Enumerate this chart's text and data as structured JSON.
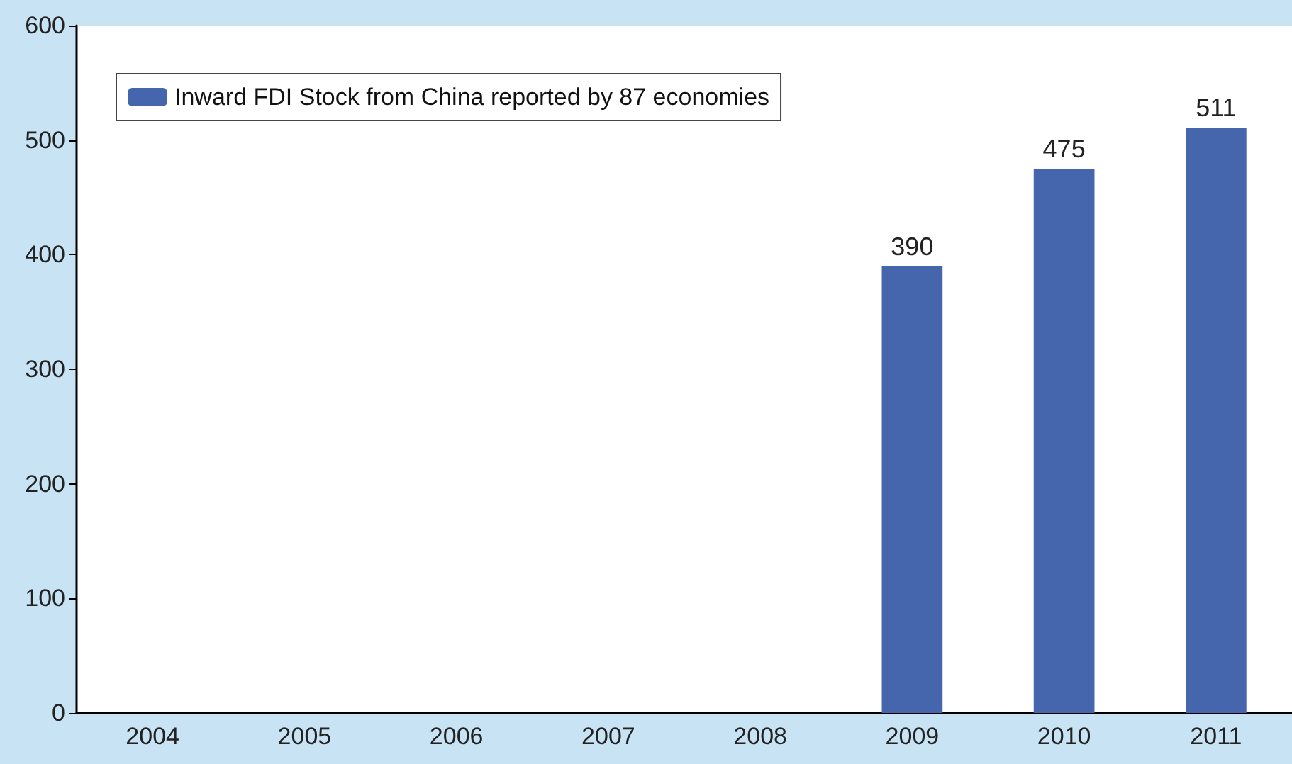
{
  "chart_data": {
    "type": "bar",
    "categories": [
      "2004",
      "2005",
      "2006",
      "2007",
      "2008",
      "2009",
      "2010",
      "2011"
    ],
    "series": [
      {
        "name": "Inward FDI Stock from China reported by 87 economies",
        "color": "#4565ad",
        "values": [
          null,
          null,
          null,
          null,
          null,
          390,
          475,
          511
        ]
      }
    ],
    "ylim": [
      0,
      600
    ],
    "yticks": [
      0,
      100,
      200,
      300,
      400,
      500,
      600
    ],
    "grid": false,
    "legend": "top left",
    "data_labels": true
  }
}
